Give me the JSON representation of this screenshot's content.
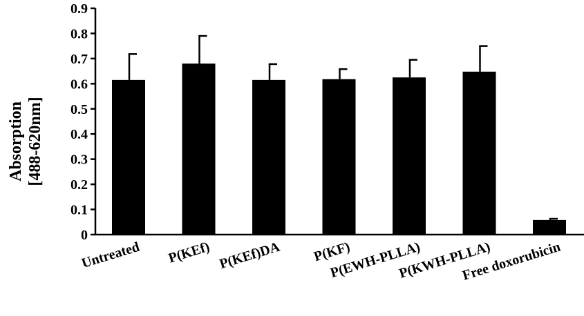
{
  "chart_data": {
    "type": "bar",
    "title": "",
    "xlabel": "",
    "ylabel_lines": [
      "Absorption",
      "[488-620nm]"
    ],
    "categories": [
      "Untreated",
      "P(KEf)",
      "P(KEf)DA",
      "P(KF)",
      "P(EWH-PLLA)",
      "P(KWH-PLLA)",
      "Free doxorubicin"
    ],
    "values": [
      0.615,
      0.68,
      0.615,
      0.618,
      0.625,
      0.648,
      0.058
    ],
    "errors": [
      0.103,
      0.11,
      0.063,
      0.04,
      0.07,
      0.102,
      0.005
    ],
    "ylim": [
      0,
      0.9
    ],
    "yticks": [
      "0",
      "0.1",
      "0.2",
      "0.3",
      "0.4",
      "0.5",
      "0.6",
      "0.7",
      "0.8",
      "0.9"
    ],
    "grid": false,
    "legend": "none",
    "bar_color": "#000000"
  }
}
